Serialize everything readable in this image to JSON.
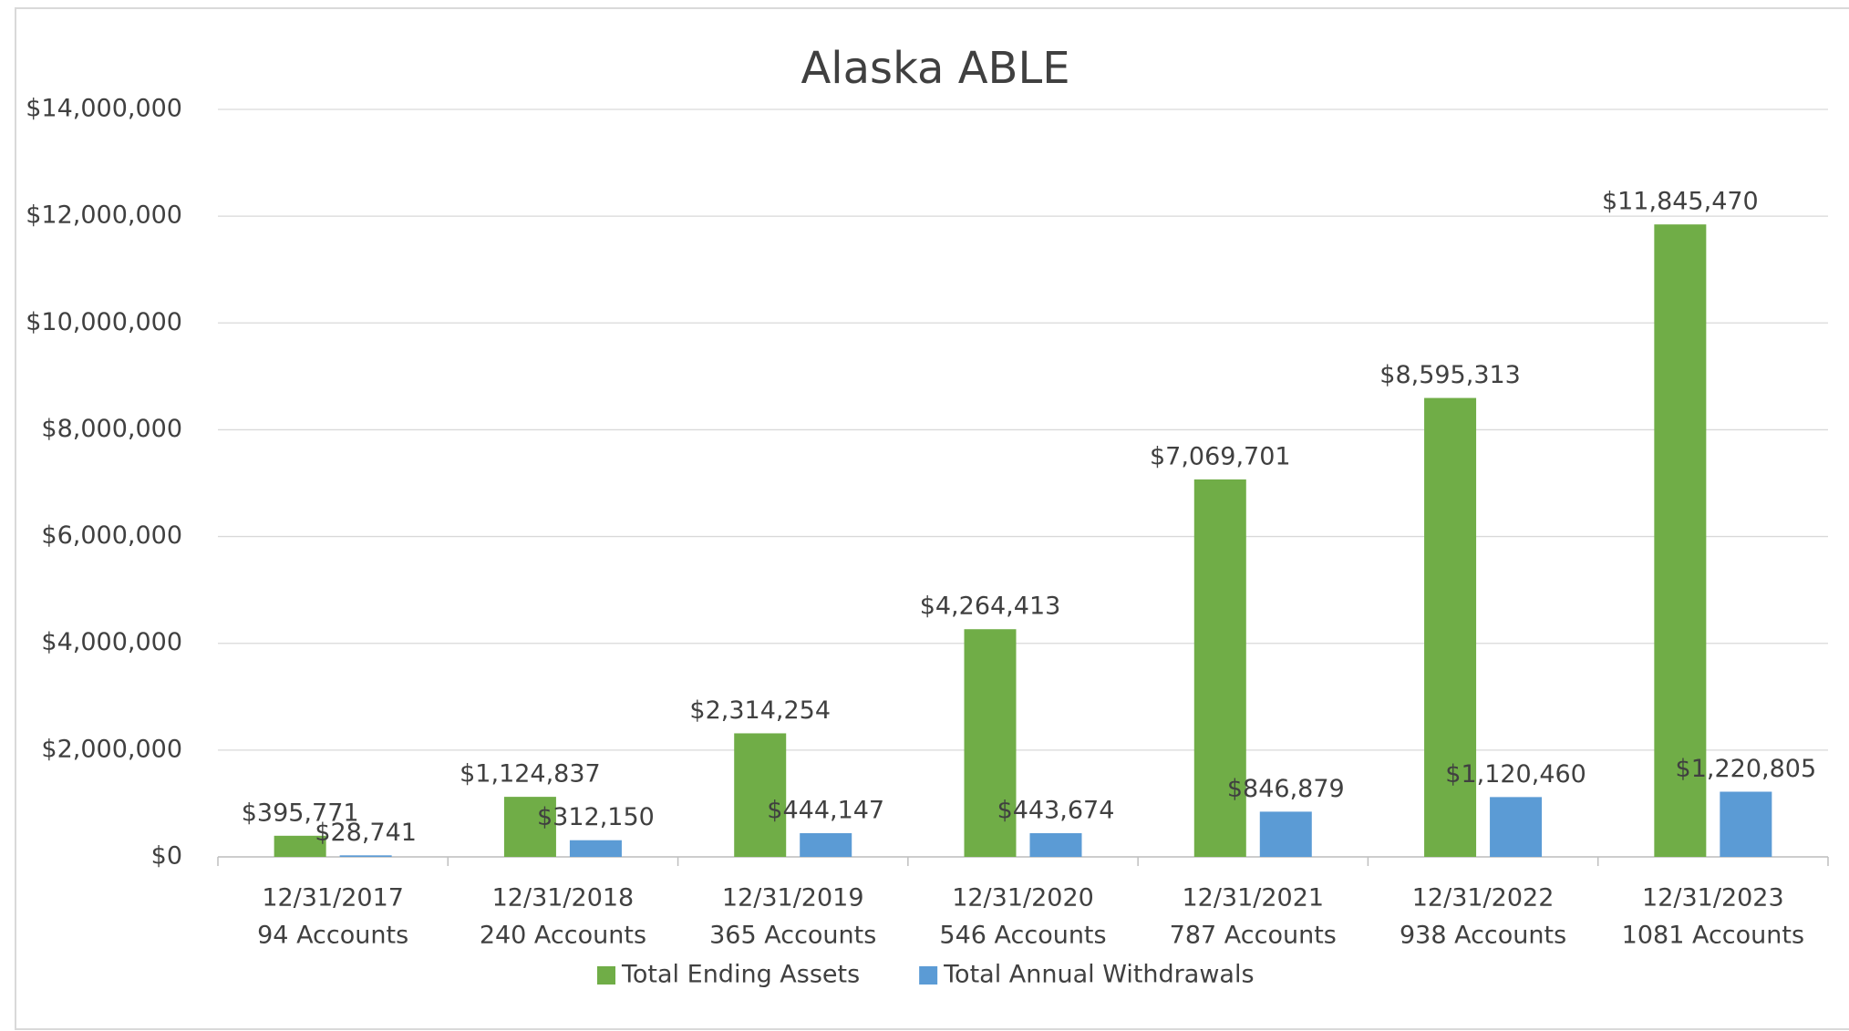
{
  "chart_data": {
    "type": "bar",
    "title": "Alaska ABLE",
    "categories": [
      [
        "12/31/2017",
        "94 Accounts"
      ],
      [
        "12/31/2018",
        "240 Accounts"
      ],
      [
        "12/31/2019",
        "365 Accounts"
      ],
      [
        "12/31/2020",
        "546 Accounts"
      ],
      [
        "12/31/2021",
        "787 Accounts"
      ],
      [
        "12/31/2022",
        "938 Accounts"
      ],
      [
        "12/31/2023",
        "1081 Accounts"
      ]
    ],
    "series": [
      {
        "name": "Total Ending Assets",
        "color": "#70ad47",
        "values": [
          395771,
          1124837,
          2314254,
          4264413,
          7069701,
          8595313,
          11845470
        ],
        "value_labels": [
          "$395,771",
          "$1,124,837",
          "$2,314,254",
          "$4,264,413",
          "$7,069,701",
          "$8,595,313",
          "$11,845,470"
        ]
      },
      {
        "name": "Total Annual Withdrawals",
        "color": "#5b9bd5",
        "values": [
          28741,
          312150,
          444147,
          443674,
          846879,
          1120460,
          1220805
        ],
        "value_labels": [
          "$28,741",
          "$312,150",
          "$444,147",
          "$443,674",
          "$846,879",
          "$1,120,460",
          "$1,220,805"
        ]
      }
    ],
    "ylim": [
      0,
      14000000
    ],
    "yticks": [
      {
        "value": 0,
        "label": "$0"
      },
      {
        "value": 2000000,
        "label": "$2,000,000"
      },
      {
        "value": 4000000,
        "label": "$4,000,000"
      },
      {
        "value": 6000000,
        "label": "$6,000,000"
      },
      {
        "value": 8000000,
        "label": "$8,000,000"
      },
      {
        "value": 10000000,
        "label": "$10,000,000"
      },
      {
        "value": 12000000,
        "label": "$12,000,000"
      },
      {
        "value": 14000000,
        "label": "$14,000,000"
      }
    ],
    "grid": true,
    "legend": "bottom"
  }
}
